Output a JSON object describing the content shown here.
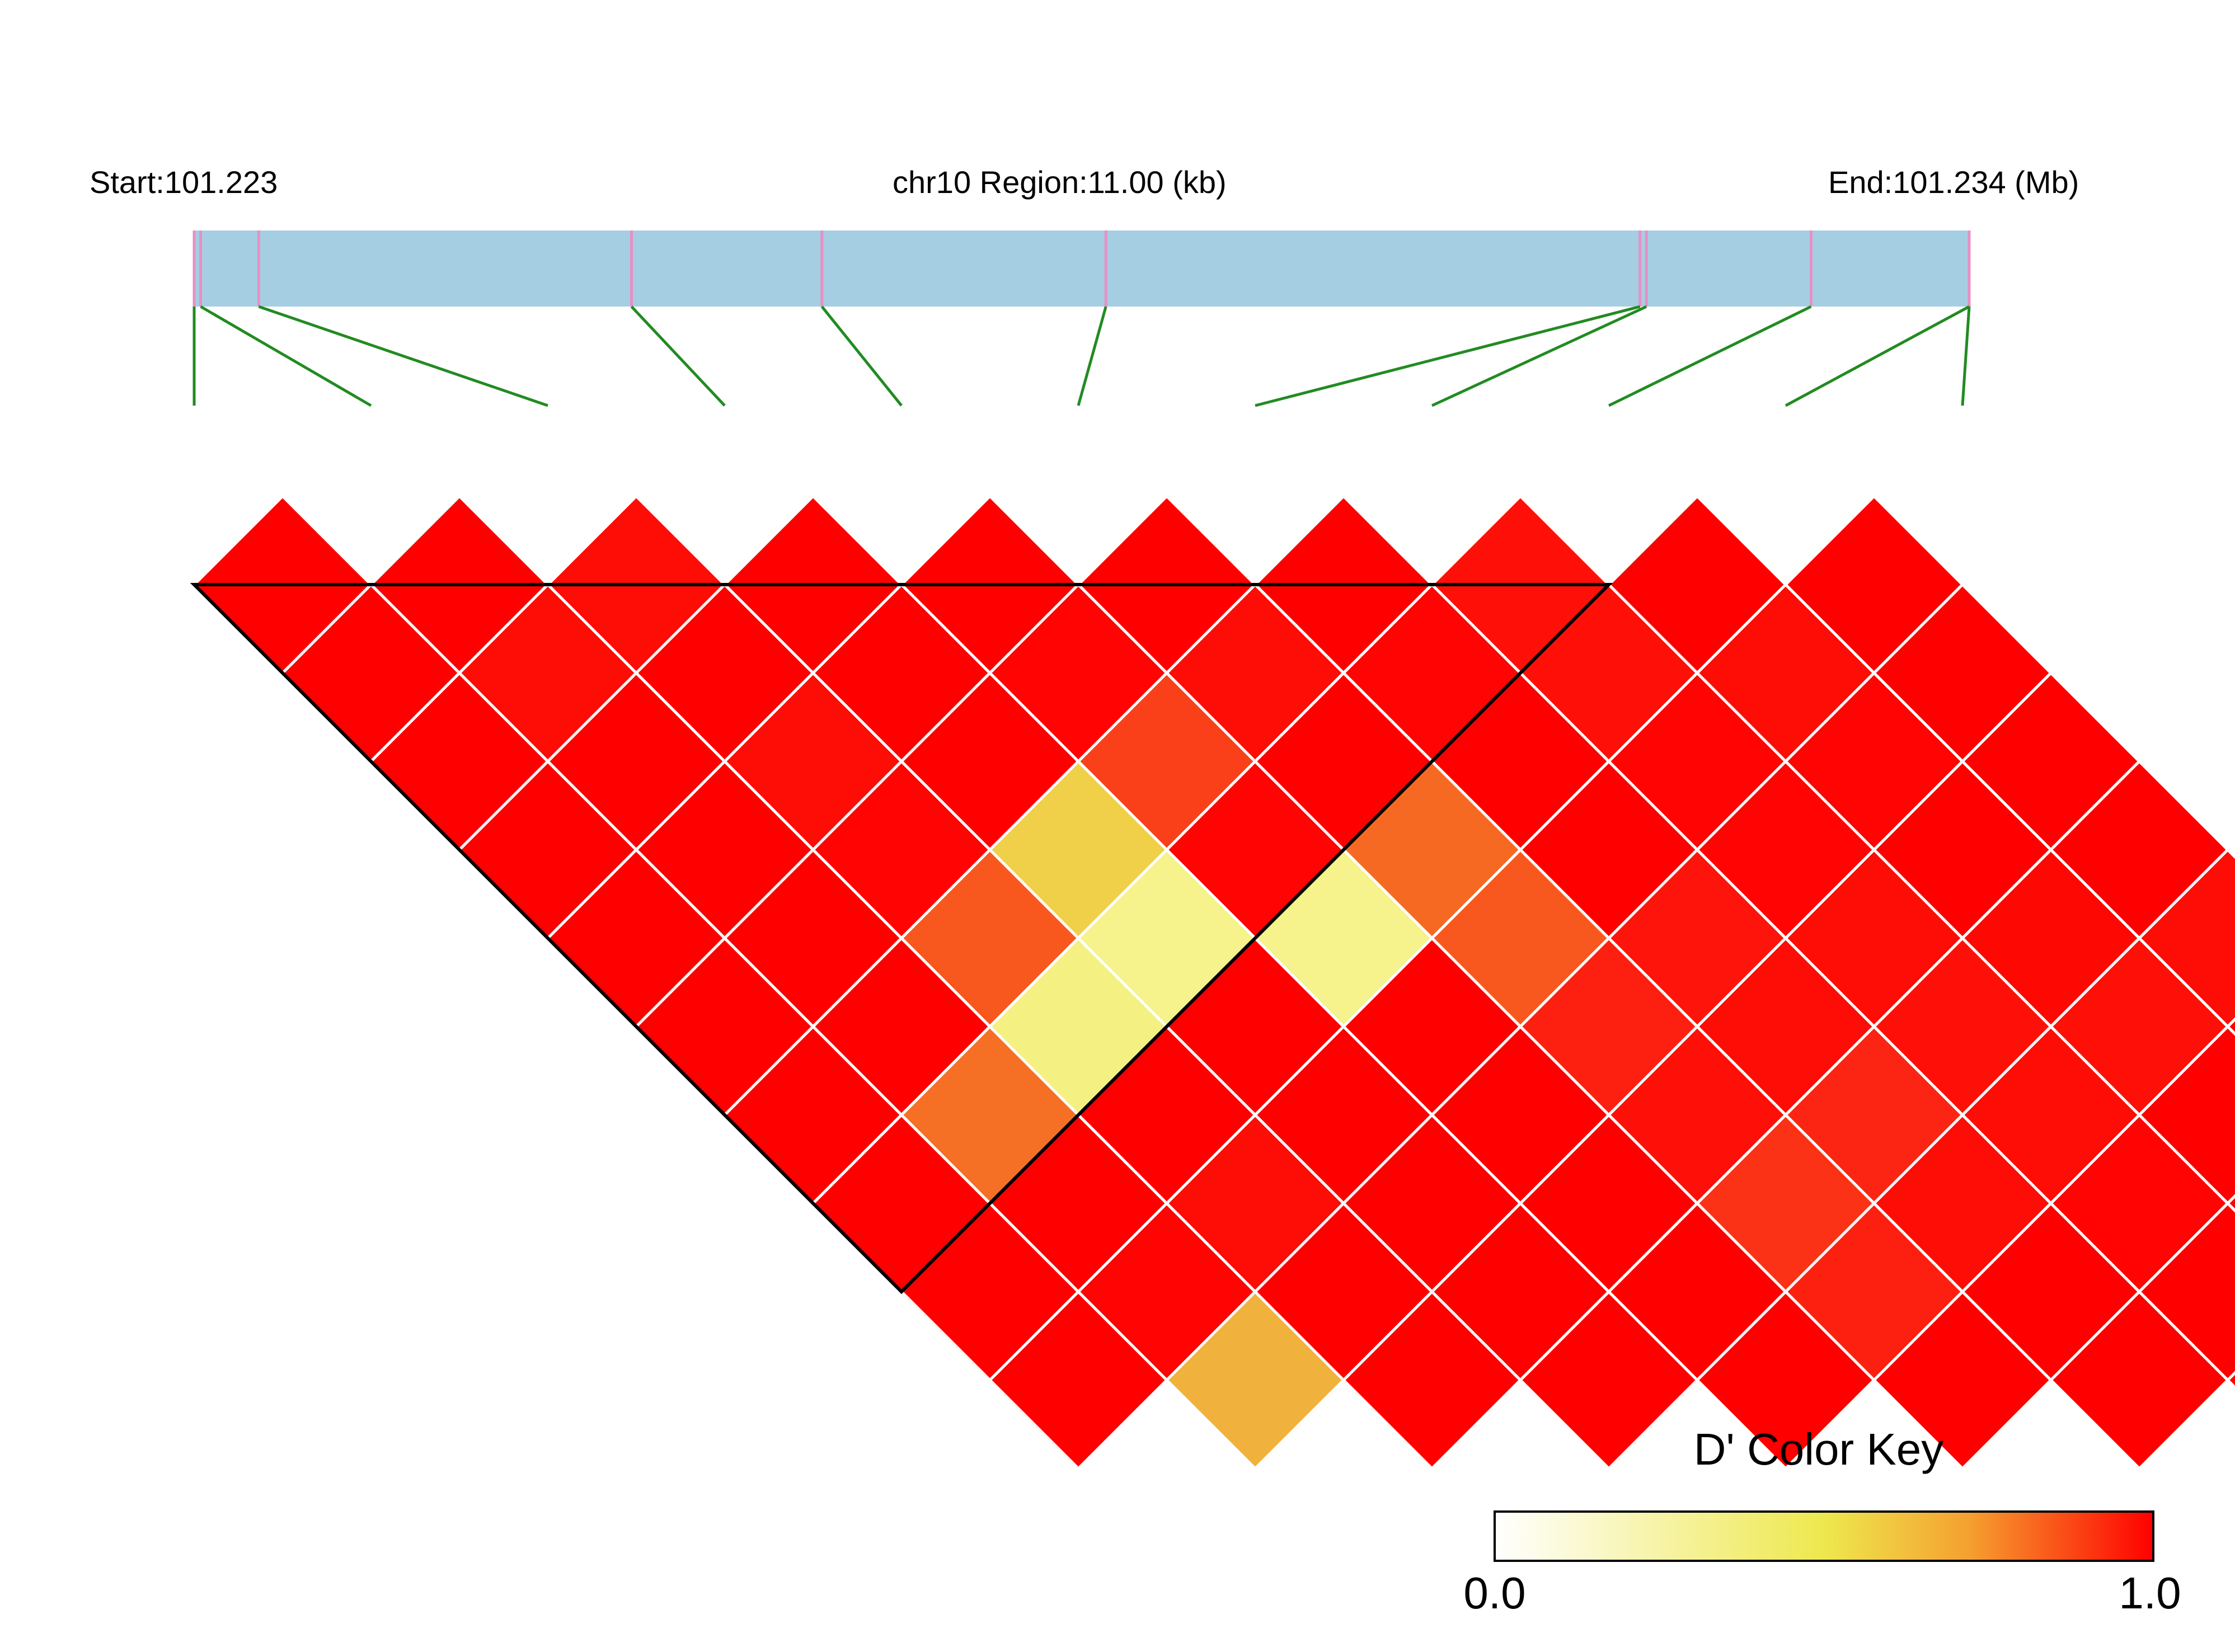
{
  "header": {
    "start_label": "Start:101.223",
    "region_label": "chr10 Region:11.00 (kb)",
    "end_label": "End:101.234 (Mb)"
  },
  "colors": {
    "region_bar": "#a6cee3",
    "snp_tick": "#e88fc4",
    "connector": "#228b22",
    "cell_border": "#ffffff",
    "block_outline": "#000000",
    "key_low": "#ffffff",
    "key_mid": "#eee84e",
    "key_high": "#ff0000"
  },
  "chart_data": {
    "type": "heatmap",
    "title": "",
    "chromosome": "chr10",
    "region_start_mb": 101.223,
    "region_end_mb": 101.234,
    "region_length_kb": 11.0,
    "snp_positions_mb": [
      101.223,
      101.22304,
      101.2234,
      101.22571,
      101.22689,
      101.22865,
      101.23196,
      101.232,
      101.23302,
      101.234,
      101.234
    ],
    "ld_metric": "D'",
    "ld_block": {
      "first_snp": 1,
      "last_snp": 9
    },
    "d_prime_matrix": [
      [
        1.0,
        1.0,
        1.0,
        1.0,
        1.0,
        1.0,
        1.0,
        1.0,
        1.0,
        1.0
      ],
      [
        1.0,
        0.97,
        1.0,
        1.0,
        1.0,
        1.0,
        0.73,
        1.0,
        0.99,
        0.55
      ],
      [
        0.97,
        1.0,
        0.97,
        0.99,
        0.8,
        0.3,
        1.0,
        0.97,
        1.0,
        1.0
      ],
      [
        1.0,
        1.0,
        1.0,
        0.45,
        0.2,
        1.0,
        1.0,
        1.0,
        1.0,
        1.0
      ],
      [
        1.0,
        0.99,
        0.85,
        0.99,
        0.2,
        1.0,
        1.0,
        1.0,
        1.0,
        1.0
      ],
      [
        1.0,
        0.97,
        1.0,
        0.75,
        0.8,
        0.92,
        0.96,
        0.88,
        0.92,
        1.0
      ],
      [
        1.0,
        0.99,
        1.0,
        1.0,
        0.95,
        0.97,
        0.91,
        0.97,
        1.0,
        1.0
      ],
      [
        0.96,
        0.96,
        0.99,
        0.99,
        0.97,
        0.96,
        0.97,
        0.99,
        1.0,
        1.0
      ],
      [
        1.0,
        0.97,
        0.99,
        1.0,
        0.98,
        0.96,
        1.0,
        1.0,
        1.0,
        1.0
      ],
      [
        1.0,
        1.0,
        1.0,
        1.0,
        0.97,
        1.0,
        1.0,
        1.0,
        1.0,
        1.0
      ]
    ],
    "color_key": {
      "title": "D' Color Key",
      "min": 0.0,
      "max": 1.0,
      "min_label": "0.0",
      "max_label": "1.0"
    }
  }
}
